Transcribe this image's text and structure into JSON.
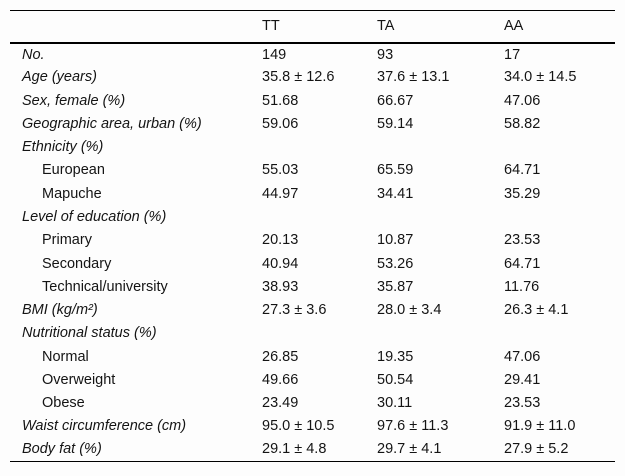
{
  "table": {
    "columns": [
      "",
      "TT",
      "TA",
      "AA"
    ],
    "rows": [
      {
        "label": "No.",
        "indent": false,
        "values": [
          "149",
          "93",
          "17"
        ]
      },
      {
        "label": "Age (years)",
        "indent": false,
        "values": [
          "35.8 ± 12.6",
          "37.6 ± 13.1",
          "34.0 ± 14.5"
        ]
      },
      {
        "label": "Sex, female (%)",
        "indent": false,
        "values": [
          "51.68",
          "66.67",
          "47.06"
        ]
      },
      {
        "label": "Geographic area, urban (%)",
        "indent": false,
        "values": [
          "59.06",
          "59.14",
          "58.82"
        ]
      },
      {
        "label": "Ethnicity (%)",
        "indent": false,
        "values": [
          "",
          "",
          ""
        ]
      },
      {
        "label": "European",
        "indent": true,
        "values": [
          "55.03",
          "65.59",
          "64.71"
        ]
      },
      {
        "label": "Mapuche",
        "indent": true,
        "values": [
          "44.97",
          "34.41",
          "35.29"
        ]
      },
      {
        "label": "Level of education (%)",
        "indent": false,
        "values": [
          "",
          "",
          ""
        ]
      },
      {
        "label": "Primary",
        "indent": true,
        "values": [
          "20.13",
          "10.87",
          "23.53"
        ]
      },
      {
        "label": "Secondary",
        "indent": true,
        "values": [
          "40.94",
          "53.26",
          "64.71"
        ]
      },
      {
        "label": "Technical/university",
        "indent": true,
        "values": [
          "38.93",
          "35.87",
          "11.76"
        ]
      },
      {
        "label": "BMI (kg/m²)",
        "indent": false,
        "values": [
          "27.3 ± 3.6",
          "28.0 ± 3.4",
          "26.3 ± 4.1"
        ]
      },
      {
        "label": "Nutritional status (%)",
        "indent": false,
        "values": [
          "",
          "",
          ""
        ]
      },
      {
        "label": "Normal",
        "indent": true,
        "values": [
          "26.85",
          "19.35",
          "47.06"
        ]
      },
      {
        "label": "Overweight",
        "indent": true,
        "values": [
          "49.66",
          "50.54",
          "29.41"
        ]
      },
      {
        "label": "Obese",
        "indent": true,
        "values": [
          "23.49",
          "30.11",
          "23.53"
        ]
      },
      {
        "label": "Waist circumference (cm)",
        "indent": false,
        "values": [
          "95.0 ± 10.5",
          "97.6 ± 11.3",
          "91.9 ± 11.0"
        ]
      },
      {
        "label": "Body fat (%)",
        "indent": false,
        "values": [
          "29.1 ± 4.8",
          "29.7 ± 4.1",
          "27.9 ± 5.2"
        ]
      }
    ]
  }
}
